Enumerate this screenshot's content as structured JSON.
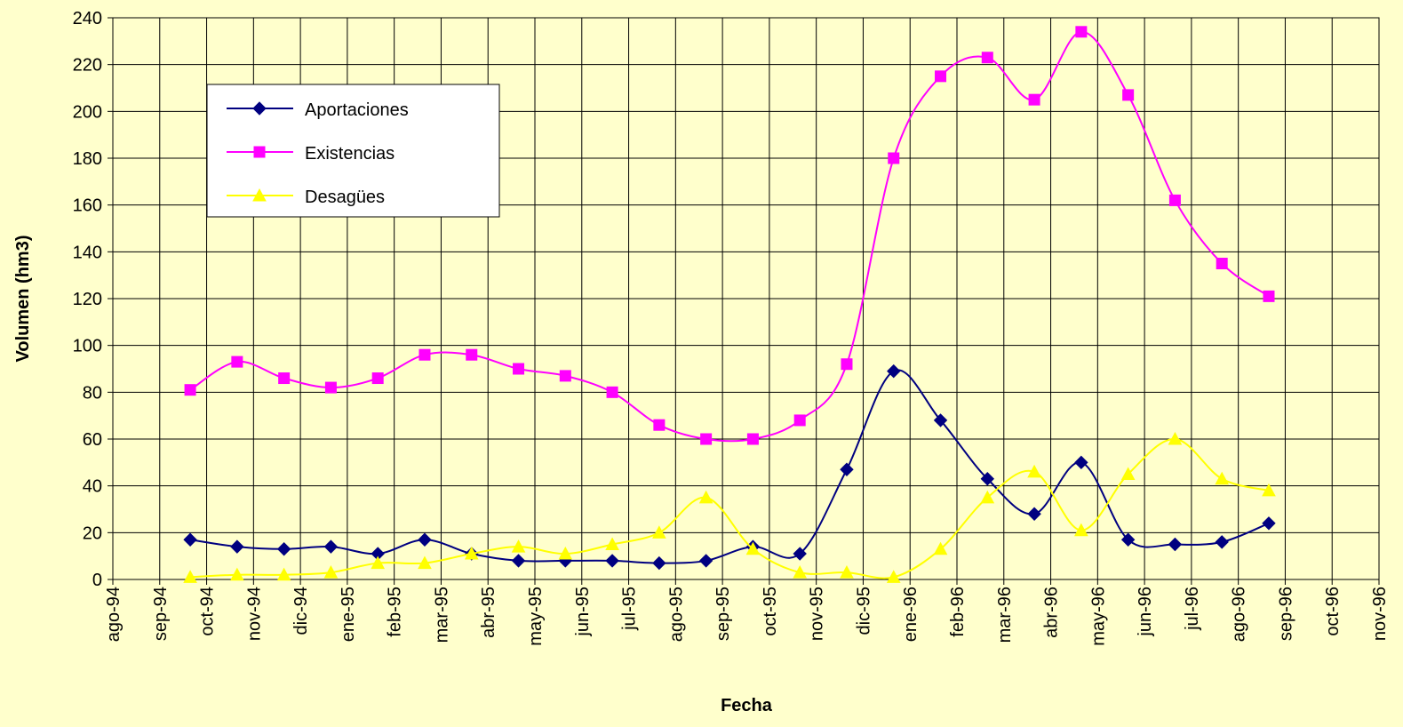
{
  "chart_data": {
    "type": "line",
    "x_label": "Fecha",
    "y_label": "Volumen (hm3)",
    "categories": [
      "ago-94",
      "sep-94",
      "oct-94",
      "nov-94",
      "dic-94",
      "ene-95",
      "feb-95",
      "mar-95",
      "abr-95",
      "may-95",
      "jun-95",
      "jul-95",
      "ago-95",
      "sep-95",
      "oct-95",
      "nov-95",
      "dic-95",
      "ene-96",
      "feb-96",
      "mar-96",
      "abr-96",
      "may-96",
      "jun-96",
      "jul-96",
      "ago-96",
      "sep-96",
      "oct-96",
      "nov-96"
    ],
    "series": [
      {
        "name": "Aportaciones",
        "color": "#000080",
        "marker": "diamond",
        "values": [
          null,
          null,
          17,
          14,
          13,
          14,
          11,
          17,
          11,
          8,
          8,
          8,
          7,
          8,
          14,
          11,
          47,
          89,
          68,
          43,
          28,
          50,
          17,
          15,
          16,
          24,
          null,
          null
        ]
      },
      {
        "name": "Existencias",
        "color": "#ff00ff",
        "marker": "square",
        "values": [
          null,
          null,
          81,
          93,
          86,
          82,
          86,
          96,
          96,
          90,
          87,
          80,
          66,
          60,
          60,
          68,
          92,
          180,
          215,
          223,
          205,
          234,
          207,
          162,
          135,
          121,
          null,
          null
        ]
      },
      {
        "name": "Desagües",
        "color": "#ffff00",
        "marker": "triangle",
        "values": [
          null,
          null,
          1,
          2,
          2,
          3,
          7,
          7,
          11,
          14,
          11,
          15,
          20,
          35,
          13,
          3,
          3,
          1,
          13,
          35,
          46,
          21,
          45,
          60,
          43,
          38,
          null,
          null
        ]
      }
    ],
    "ylim": [
      0,
      240
    ],
    "yticks": [
      0,
      20,
      40,
      60,
      80,
      100,
      120,
      140,
      160,
      180,
      200,
      220,
      240
    ],
    "grid": true
  }
}
